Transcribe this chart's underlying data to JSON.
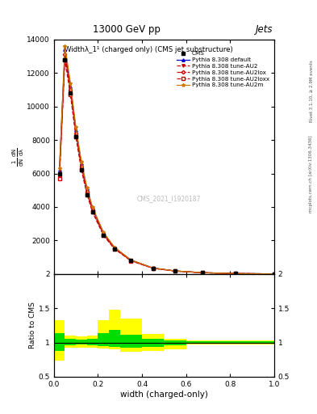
{
  "title_top": "13000 GeV pp",
  "title_right": "Jets",
  "plot_title": "Widthλ_1¹ (charged only) (CMS jet substructure)",
  "watermark": "CMS_2021_I1920187",
  "xlabel": "width (charged-only)",
  "right_label": "Rivet 3.1.10, ≥ 2.9M events",
  "right_label2": "mcplots.cern.ch [arXiv:1306.3436]",
  "xlim": [
    0,
    1
  ],
  "ylim_main": [
    0,
    14000
  ],
  "ylim_ratio": [
    0.5,
    2.0
  ],
  "main_yticks": [
    2000,
    4000,
    6000,
    8000,
    10000,
    12000,
    14000
  ],
  "ratio_yticks": [
    0.5,
    1.0,
    1.5,
    2.0
  ],
  "cms_x": [
    0.025,
    0.05,
    0.075,
    0.1,
    0.125,
    0.15,
    0.175,
    0.225,
    0.275,
    0.35,
    0.45,
    0.55,
    0.675,
    0.825,
    1.0
  ],
  "cms_y": [
    6000,
    12800,
    10800,
    8200,
    6200,
    4700,
    3700,
    2300,
    1500,
    800,
    350,
    180,
    80,
    30,
    8
  ],
  "pythia_default_x": [
    0.025,
    0.05,
    0.075,
    0.1,
    0.125,
    0.15,
    0.175,
    0.225,
    0.275,
    0.35,
    0.45,
    0.55,
    0.675,
    0.825,
    1.0
  ],
  "pythia_default_y": [
    6200,
    13400,
    11200,
    8600,
    6600,
    5100,
    3950,
    2450,
    1580,
    830,
    360,
    185,
    82,
    32,
    8
  ],
  "pythia_AU2_x": [
    0.025,
    0.05,
    0.075,
    0.1,
    0.125,
    0.15,
    0.175,
    0.225,
    0.275,
    0.35,
    0.45,
    0.55,
    0.675,
    0.825,
    1.0
  ],
  "pythia_AU2_y": [
    5800,
    13000,
    10900,
    8300,
    6300,
    4850,
    3750,
    2350,
    1520,
    800,
    348,
    180,
    80,
    31,
    8
  ],
  "pythia_AU2lox_x": [
    0.025,
    0.05,
    0.075,
    0.1,
    0.125,
    0.15,
    0.175,
    0.225,
    0.275,
    0.35,
    0.45,
    0.55,
    0.675,
    0.825,
    1.0
  ],
  "pythia_AU2lox_y": [
    5900,
    13100,
    11000,
    8400,
    6400,
    4900,
    3800,
    2380,
    1540,
    810,
    352,
    182,
    81,
    31,
    8
  ],
  "pythia_AU2loxx_x": [
    0.025,
    0.05,
    0.075,
    0.1,
    0.125,
    0.15,
    0.175,
    0.225,
    0.275,
    0.35,
    0.45,
    0.55,
    0.675,
    0.825,
    1.0
  ],
  "pythia_AU2loxx_y": [
    5700,
    12800,
    10700,
    8200,
    6200,
    4780,
    3700,
    2310,
    1500,
    790,
    344,
    178,
    79,
    31,
    8
  ],
  "pythia_AU2m_x": [
    0.025,
    0.05,
    0.075,
    0.1,
    0.125,
    0.15,
    0.175,
    0.225,
    0.275,
    0.35,
    0.45,
    0.55,
    0.675,
    0.825,
    1.0
  ],
  "pythia_AU2m_y": [
    6300,
    13600,
    11400,
    8750,
    6700,
    5150,
    4000,
    2490,
    1600,
    840,
    365,
    188,
    83,
    32,
    8
  ],
  "bin_edges": [
    0.0,
    0.05,
    0.1,
    0.15,
    0.2,
    0.25,
    0.3,
    0.4,
    0.5,
    0.6,
    0.8,
    1.0
  ],
  "yellow_low": [
    0.74,
    0.92,
    0.93,
    0.92,
    0.91,
    0.9,
    0.87,
    0.88,
    0.9,
    0.97,
    0.97
  ],
  "yellow_high": [
    1.32,
    1.1,
    1.09,
    1.1,
    1.32,
    1.48,
    1.35,
    1.12,
    1.05,
    1.03,
    1.03
  ],
  "green_low": [
    0.88,
    0.96,
    0.97,
    0.96,
    0.95,
    0.94,
    0.93,
    0.94,
    0.96,
    0.98,
    0.98
  ],
  "green_high": [
    1.14,
    1.05,
    1.04,
    1.05,
    1.14,
    1.18,
    1.11,
    1.06,
    1.03,
    1.02,
    1.02
  ],
  "colors": {
    "cms": "#000000",
    "pythia_default": "#0000cc",
    "pythia_AU2": "#cc0000",
    "pythia_AU2lox": "#cc0000",
    "pythia_AU2loxx": "#cc0000",
    "pythia_AU2m": "#cc7700",
    "green_band": "#00dd00",
    "yellow_band": "#ffff00"
  }
}
